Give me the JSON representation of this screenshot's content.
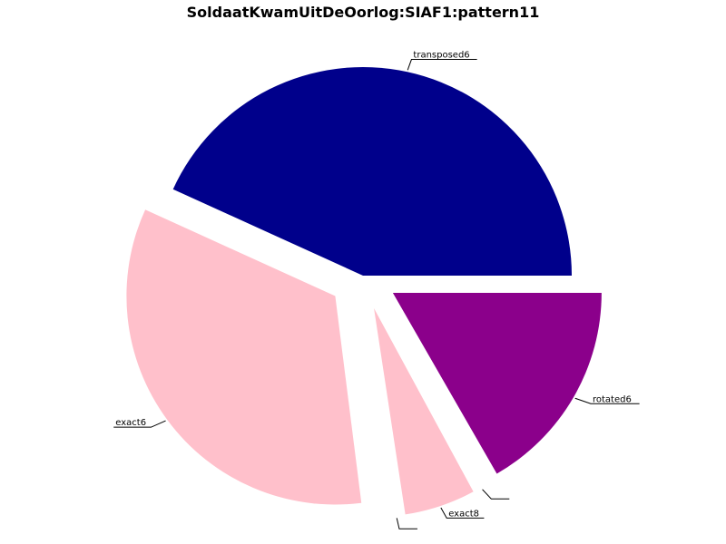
{
  "chart_data": {
    "type": "pie",
    "title": "SoldaatKwamUitDeOorlog:SIAF1:pattern11",
    "slices": [
      {
        "label": "rotated6",
        "value": 16.7,
        "color": "#8b008b",
        "exploded": true
      },
      {
        "label": "",
        "value": 0.4,
        "color": "#ffffff",
        "exploded": true
      },
      {
        "label": "exact8",
        "value": 5.5,
        "color": "#ffc0cb",
        "exploded": true
      },
      {
        "label": "",
        "value": 0.4,
        "color": "#ffffff",
        "exploded": true
      },
      {
        "label": "exact6",
        "value": 33.8,
        "color": "#ffc0cb",
        "exploded": true
      },
      {
        "label": "transposed6",
        "value": 43.2,
        "color": "#00008b",
        "exploded": false
      }
    ],
    "start_angle_deg": 0,
    "direction": "clockwise",
    "legend": "none"
  }
}
